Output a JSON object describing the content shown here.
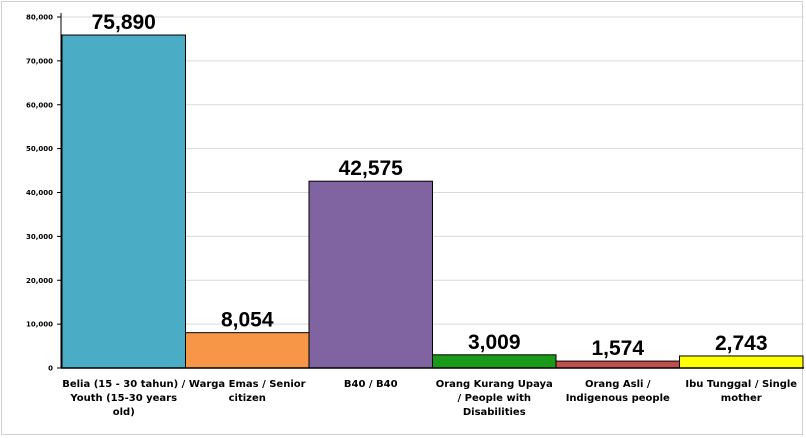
{
  "chart_data": {
    "type": "bar",
    "title": "",
    "xlabel": "",
    "ylabel": "",
    "ylim": [
      0,
      80000
    ],
    "yticks": [
      {
        "value": 0,
        "label": "0"
      },
      {
        "value": 10000,
        "label": "10,000"
      },
      {
        "value": 20000,
        "label": "20,000"
      },
      {
        "value": 30000,
        "label": "30,000"
      },
      {
        "value": 40000,
        "label": "40,000"
      },
      {
        "value": 50000,
        "label": "50,000"
      },
      {
        "value": 60000,
        "label": "60,000"
      },
      {
        "value": 70000,
        "label": "70,000"
      },
      {
        "value": 80000,
        "label": "80,000"
      }
    ],
    "grid": "horizontal",
    "legend": "none",
    "categories": [
      "Belia (15 - 30 tahun) / Youth (15-30 years old)",
      "Warga Emas / Senior citizen",
      "B40 / B40",
      "Orang Kurang Upaya / People with Disabilities",
      "Orang Asli / Indigenous people",
      "Ibu Tunggal / Single mother"
    ],
    "category_lines": [
      [
        "Belia (15 - 30 tahun) /",
        "Youth (15-30 years",
        "old)"
      ],
      [
        "Warga Emas / Senior",
        "citizen"
      ],
      [
        "B40 / B40"
      ],
      [
        "Orang Kurang Upaya",
        "/ People with",
        "Disabilities"
      ],
      [
        "Orang Asli /",
        "Indigenous people"
      ],
      [
        "Ibu Tunggal / Single",
        "mother"
      ]
    ],
    "values": [
      75890,
      8054,
      42575,
      3009,
      1574,
      2743
    ],
    "value_labels": [
      "75,890",
      "8,054",
      "42,575",
      "3,009",
      "1,574",
      "2,743"
    ],
    "colors": [
      "#4bacc6",
      "#f79646",
      "#8064a2",
      "#1a9a1a",
      "#c0504d",
      "#ffff00"
    ]
  }
}
